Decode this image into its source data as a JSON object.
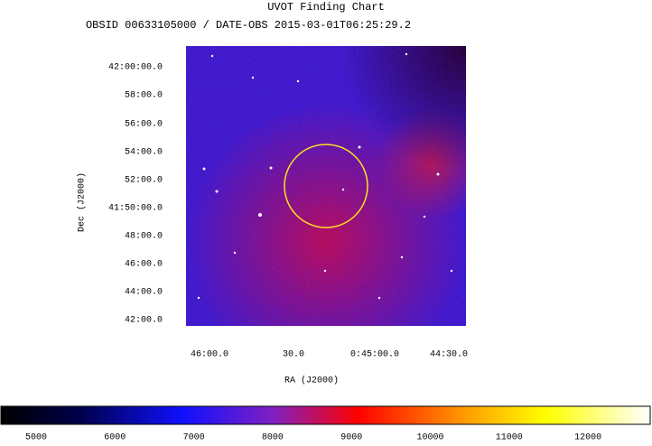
{
  "title": "UVOT Finding Chart",
  "subtitle": "OBSID 00633105000 / DATE-OBS 2015-03-01T06:25:29.2",
  "x_axis": {
    "label": "RA (J2000)",
    "ticks": [
      "46:00.0",
      "30.0",
      "0:45:00.0",
      "44:30.0"
    ]
  },
  "y_axis": {
    "label": "Dec (J2000)",
    "ticks": [
      "42:00:00.0",
      "58:00.0",
      "56:00.0",
      "54:00.0",
      "52:00.0",
      "41:50:00.0",
      "48:00.0",
      "46:00.0",
      "44:00.0",
      "42:00.0"
    ]
  },
  "colorbar": {
    "ticks": [
      5000,
      6000,
      7000,
      8000,
      9000,
      10000,
      11000,
      12000
    ]
  }
}
